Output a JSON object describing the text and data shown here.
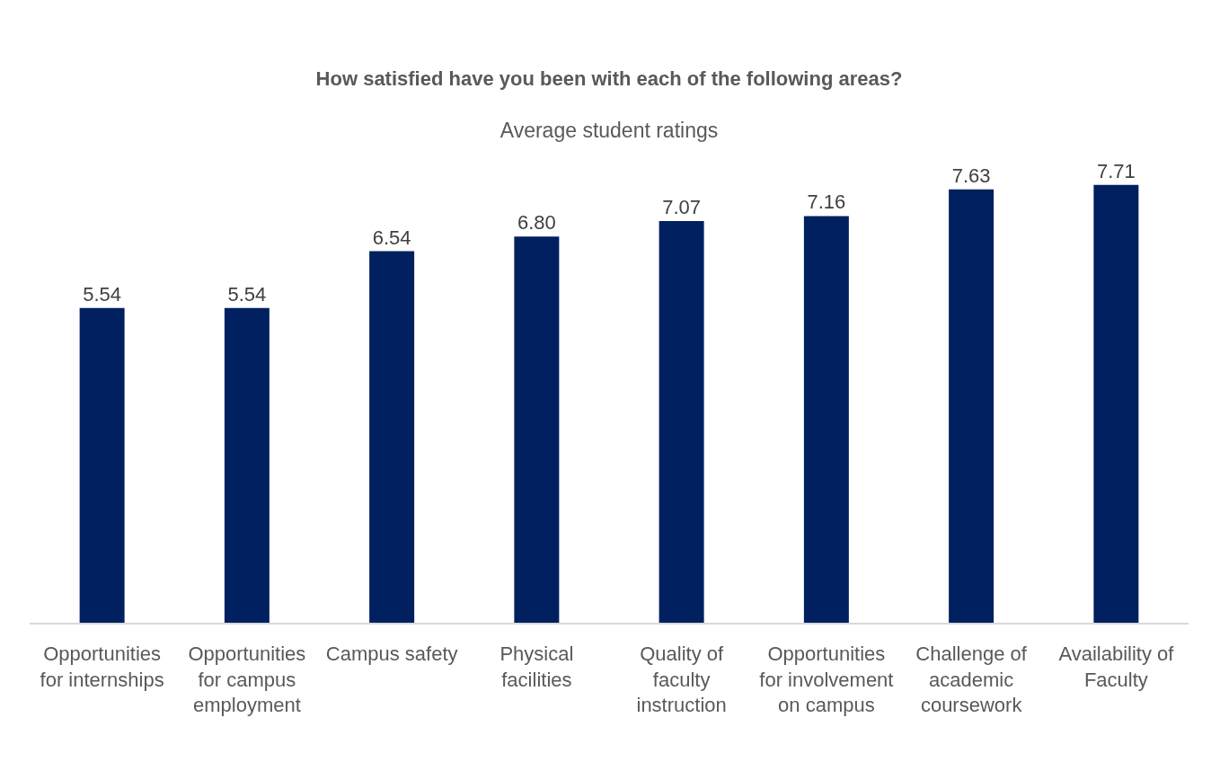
{
  "chart_data": {
    "type": "bar",
    "title": "How satisfied have you been with each of the following areas?",
    "subtitle": "Average student ratings",
    "categories": [
      "Opportunities for internships",
      "Opportunities for campus employment",
      "Campus safety",
      "Physical facilities",
      "Quality of faculty instruction",
      "Opportunities for involvement on campus",
      "Challenge of academic coursework",
      "Availability of Faculty"
    ],
    "values": [
      5.54,
      5.54,
      6.54,
      6.8,
      7.07,
      7.16,
      7.63,
      7.71
    ],
    "value_labels": [
      "5.54",
      "5.54",
      "6.54",
      "6.80",
      "7.07",
      "7.16",
      "7.63",
      "7.71"
    ],
    "color": "#002060",
    "tick_labels": "x",
    "grid": false
  }
}
